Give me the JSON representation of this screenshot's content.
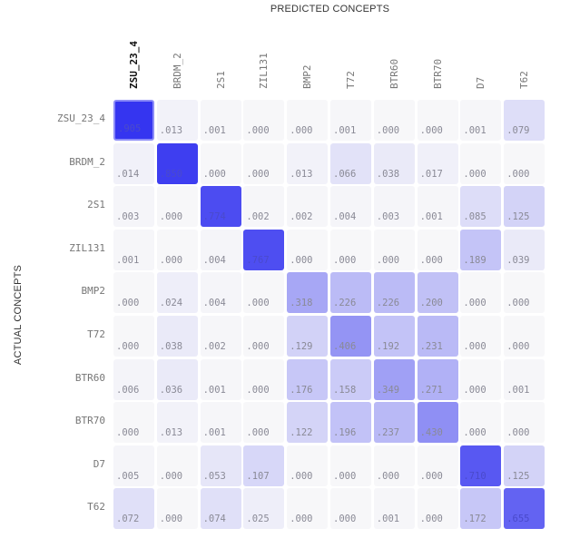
{
  "chart_data": {
    "type": "heatmap",
    "title": "",
    "xlabel": "PREDICTED CONCEPTS",
    "ylabel": "ACTUAL CONCEPTS",
    "x_categories": [
      "ZSU_23_4",
      "BRDM_2",
      "2S1",
      "ZIL131",
      "BMP2",
      "T72",
      "BTR60",
      "BTR70",
      "D7",
      "T62"
    ],
    "y_categories": [
      "ZSU_23_4",
      "BRDM_2",
      "2S1",
      "ZIL131",
      "BMP2",
      "T72",
      "BTR60",
      "BTR70",
      "D7",
      "T62"
    ],
    "selected_column": "ZSU_23_4",
    "values": [
      [
        ".905",
        ".013",
        ".001",
        ".000",
        ".000",
        ".001",
        ".000",
        ".000",
        ".001",
        ".079"
      ],
      [
        ".014",
        ".850",
        ".000",
        ".000",
        ".013",
        ".066",
        ".038",
        ".017",
        ".000",
        ".000"
      ],
      [
        ".003",
        ".000",
        ".774",
        ".002",
        ".002",
        ".004",
        ".003",
        ".001",
        ".085",
        ".125"
      ],
      [
        ".001",
        ".000",
        ".004",
        ".767",
        ".000",
        ".000",
        ".000",
        ".000",
        ".189",
        ".039"
      ],
      [
        ".000",
        ".024",
        ".004",
        ".000",
        ".318",
        ".226",
        ".226",
        ".200",
        ".000",
        ".000"
      ],
      [
        ".000",
        ".038",
        ".002",
        ".000",
        ".129",
        ".406",
        ".192",
        ".231",
        ".000",
        ".000"
      ],
      [
        ".006",
        ".036",
        ".001",
        ".000",
        ".176",
        ".158",
        ".349",
        ".271",
        ".000",
        ".001"
      ],
      [
        ".000",
        ".013",
        ".001",
        ".000",
        ".122",
        ".196",
        ".237",
        ".430",
        ".000",
        ".000"
      ],
      [
        ".005",
        ".000",
        ".053",
        ".107",
        ".000",
        ".000",
        ".000",
        ".000",
        ".710",
        ".125"
      ],
      [
        ".072",
        ".000",
        ".074",
        ".025",
        ".000",
        ".000",
        ".001",
        ".000",
        ".172",
        ".655"
      ]
    ],
    "color_low": "#f7f7f9",
    "color_high": "#3535f0",
    "selected_border": "#8c8cf7"
  }
}
